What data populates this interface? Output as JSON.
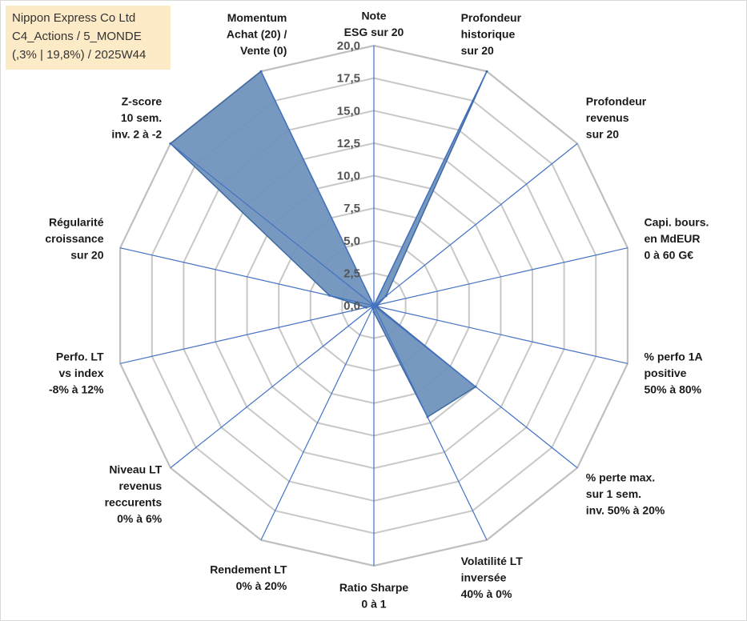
{
  "info": {
    "company": "Nippon Express Co Ltd",
    "portfolio": "C4_Actions / 5_MONDE",
    "stats": "(,3% | 19,8%) / 2025W44"
  },
  "chart_data": {
    "type": "radar",
    "title": "",
    "range": [
      0,
      20
    ],
    "tick_step": 2.5,
    "tick_labels": [
      "0,0",
      "2,5",
      "5,0",
      "7,5",
      "10,0",
      "12,5",
      "15,0",
      "17,5",
      "20,0"
    ],
    "categories": [
      [
        "Note",
        "ESG sur 20"
      ],
      [
        "Profondeur",
        "historique",
        "sur 20"
      ],
      [
        "Profondeur",
        "revenus",
        "sur 20"
      ],
      [
        "Capi. bours.",
        "en MdEUR",
        "0 à 60 G€"
      ],
      [
        "% perfo 1A",
        "positive",
        "50% à 80%"
      ],
      [
        "% perte max.",
        "sur 1 sem.",
        "inv. 50% à 20%"
      ],
      [
        "Volatilité LT",
        "inversée",
        "40% à 0%"
      ],
      [
        "Ratio Sharpe",
        "0 à 1"
      ],
      [
        "Rendement LT",
        "0% à 20%"
      ],
      [
        "Niveau LT",
        "revenus",
        "reccurents",
        "0% à 6%"
      ],
      [
        "Perfo. LT",
        "vs index",
        "-8% à 12%"
      ],
      [
        "Régularité",
        "croissance",
        "sur 20"
      ],
      [
        "Z-score",
        "10 sem.",
        "inv. 2 à -2"
      ],
      [
        "Momentum",
        "Achat (20) /",
        "Vente (0)"
      ]
    ],
    "series": [
      {
        "name": "Nippon Express Co Ltd",
        "values": [
          0,
          20,
          1.2,
          0.3,
          0.2,
          10,
          9.5,
          0.5,
          0.2,
          0,
          0.6,
          3.5,
          20,
          20
        ]
      }
    ],
    "colors": {
      "fill": "#7094bd",
      "stroke": "#3d6aa3",
      "spoke": "#4472c4",
      "grid": "#c8c8c8",
      "outer": "#bfbfbf"
    }
  }
}
